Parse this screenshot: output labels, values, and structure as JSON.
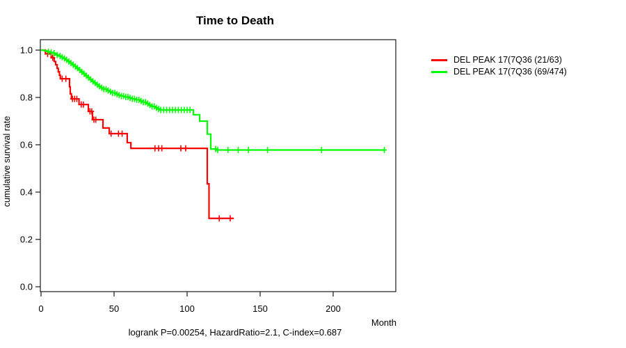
{
  "title": "Time to Death",
  "footer": "logrank P=0.00254, HazardRatio=2.1, C-index=0.687",
  "axes": {
    "x_label": "Month",
    "y_label": "cumulative survival rate"
  },
  "legend": [
    {
      "label": "DEL PEAK 17(7Q36 (21/63)",
      "color": "#ff0000"
    },
    {
      "label": "DEL PEAK 17(7Q36 (69/474)",
      "color": "#00ff00"
    }
  ],
  "chart_data": {
    "type": "line",
    "subtype": "kaplan-meier-step",
    "title": "Time to Death",
    "xlabel": "Month",
    "ylabel": "cumulative survival rate",
    "xlim": [
      0,
      243
    ],
    "ylim": [
      0,
      1.04
    ],
    "x_ticks": [
      0,
      50,
      100,
      150,
      200
    ],
    "y_ticks": [
      0.0,
      0.2,
      0.4,
      0.6,
      0.8,
      1.0
    ],
    "grid": false,
    "legend_position": "right-outside",
    "annotation": "logrank P=0.00254, HazardRatio=2.1, C-index=0.687",
    "series": [
      {
        "name": "DEL PEAK 17(7Q36 (21/63)",
        "color": "#ff0000",
        "end_month": 132,
        "steps": [
          [
            0,
            1.0
          ],
          [
            3,
            0.984
          ],
          [
            7,
            0.968
          ],
          [
            9,
            0.952
          ],
          [
            10,
            0.938
          ],
          [
            11,
            0.923
          ],
          [
            11.8,
            0.908
          ],
          [
            12.6,
            0.894
          ],
          [
            13.2,
            0.879
          ],
          [
            19.5,
            0.845
          ],
          [
            20,
            0.815
          ],
          [
            20.8,
            0.794
          ],
          [
            26,
            0.77
          ],
          [
            32.4,
            0.741
          ],
          [
            35.2,
            0.706
          ],
          [
            42.4,
            0.671
          ],
          [
            46.7,
            0.647
          ],
          [
            59,
            0.609
          ],
          [
            61.5,
            0.585
          ],
          [
            113.8,
            0.435
          ],
          [
            115,
            0.289
          ]
        ],
        "censors": [
          4.5,
          8,
          14.5,
          17,
          21.5,
          23,
          24.5,
          27.5,
          29,
          33.5,
          34.7,
          36.2,
          37.5,
          48,
          53,
          55.5,
          78,
          80.5,
          82.7,
          95.7,
          99,
          122,
          129.5
        ]
      },
      {
        "name": "DEL PEAK 17(7Q36 (69/474)",
        "color": "#00ff00",
        "end_month": 236,
        "steps": [
          [
            0,
            1.0
          ],
          [
            2,
            0.998
          ],
          [
            3.5,
            0.996
          ],
          [
            5,
            0.993
          ],
          [
            6.5,
            0.99
          ],
          [
            8,
            0.987
          ],
          [
            9.5,
            0.983
          ],
          [
            11,
            0.979
          ],
          [
            12.5,
            0.975
          ],
          [
            14,
            0.97
          ],
          [
            15.5,
            0.965
          ],
          [
            17,
            0.959
          ],
          [
            18.5,
            0.952
          ],
          [
            20,
            0.945
          ],
          [
            21.5,
            0.938
          ],
          [
            23,
            0.931
          ],
          [
            24.5,
            0.924
          ],
          [
            26,
            0.916
          ],
          [
            27.5,
            0.908
          ],
          [
            29,
            0.9
          ],
          [
            30.5,
            0.892
          ],
          [
            32,
            0.884
          ],
          [
            33.5,
            0.876
          ],
          [
            35,
            0.868
          ],
          [
            36.5,
            0.861
          ],
          [
            38,
            0.854
          ],
          [
            39.5,
            0.847
          ],
          [
            41,
            0.841
          ],
          [
            43,
            0.835
          ],
          [
            45,
            0.829
          ],
          [
            47,
            0.824
          ],
          [
            49,
            0.819
          ],
          [
            51,
            0.814
          ],
          [
            53,
            0.81
          ],
          [
            55,
            0.806
          ],
          [
            57.5,
            0.802
          ],
          [
            60,
            0.798
          ],
          [
            62.5,
            0.794
          ],
          [
            65,
            0.79
          ],
          [
            67.5,
            0.785
          ],
          [
            70,
            0.78
          ],
          [
            72,
            0.774
          ],
          [
            74,
            0.768
          ],
          [
            76,
            0.762
          ],
          [
            78,
            0.756
          ],
          [
            80,
            0.751
          ],
          [
            82,
            0.747
          ],
          [
            104.3,
            0.727
          ],
          [
            108.6,
            0.7
          ],
          [
            113.8,
            0.645
          ],
          [
            116.2,
            0.582
          ],
          [
            120,
            0.578
          ]
        ],
        "censors": [
          5,
          7,
          9,
          11,
          13,
          14.5,
          16,
          17.5,
          19,
          20.5,
          22,
          23.5,
          25,
          26.5,
          28,
          29.5,
          31,
          32.5,
          34,
          35.5,
          37,
          38.5,
          40,
          41.5,
          43,
          44.5,
          46,
          47.5,
          49,
          50.5,
          52,
          53.5,
          55,
          56.5,
          58,
          59.5,
          61,
          62.5,
          64,
          65.5,
          67,
          68.5,
          70,
          71.5,
          73,
          74.5,
          76,
          77.5,
          79,
          80.5,
          82,
          84,
          86,
          88,
          90,
          92,
          94,
          96,
          98,
          100,
          102,
          119.5,
          121,
          128,
          135,
          142,
          155,
          192,
          235
        ]
      }
    ]
  }
}
